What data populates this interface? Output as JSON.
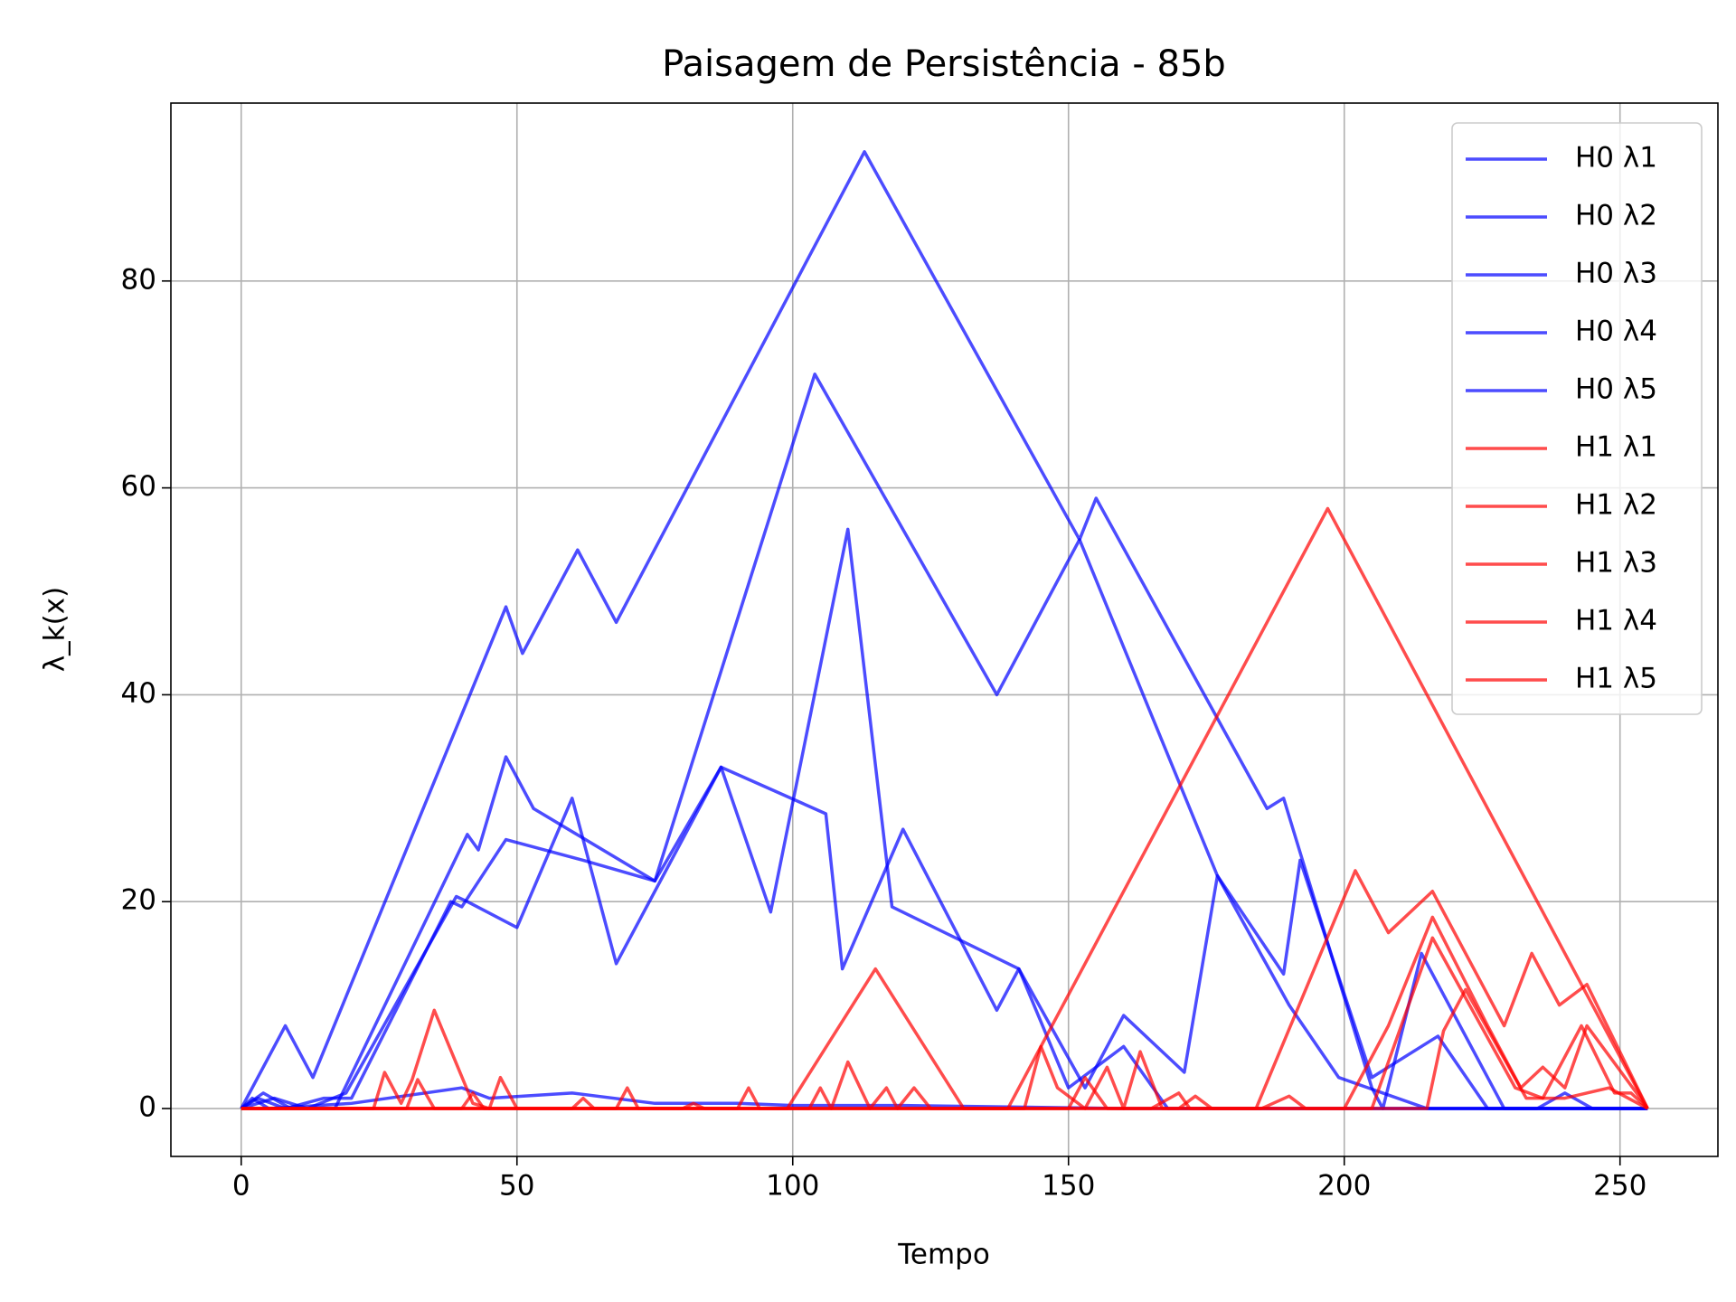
{
  "chart_data": {
    "type": "line",
    "title": "Paisagem de Persistência - 85b",
    "xlabel": "Tempo",
    "ylabel": "λ_k(x)",
    "xlim": [
      -12.75,
      267.75
    ],
    "ylim": [
      -4.63,
      97.2
    ],
    "xticks": [
      0,
      50,
      100,
      150,
      200,
      250
    ],
    "yticks": [
      0,
      20,
      40,
      60,
      80
    ],
    "grid": true,
    "legend": "upper right",
    "series": [
      {
        "name": "H0 λ1",
        "color": "#0000ff",
        "x": [
          0,
          8,
          13,
          48,
          51,
          61,
          68,
          113,
          152,
          155,
          186,
          189,
          205,
          207,
          214,
          229,
          255
        ],
        "values": [
          0,
          8,
          3,
          48.5,
          44,
          54,
          47,
          92.5,
          55,
          59,
          29,
          30,
          2,
          0,
          15,
          0,
          0
        ]
      },
      {
        "name": "H0 λ2",
        "color": "#0000ff",
        "x": [
          0,
          4,
          9,
          17,
          41,
          43,
          48,
          53,
          75,
          104,
          137,
          152,
          177,
          189,
          192,
          205,
          217,
          226,
          255
        ],
        "values": [
          0,
          1.5,
          0,
          0,
          26.5,
          25,
          34,
          29,
          22,
          71,
          40,
          55,
          22.5,
          13,
          24,
          3,
          7,
          0,
          0
        ]
      },
      {
        "name": "H0 λ3",
        "color": "#0000ff",
        "x": [
          0,
          6,
          12,
          19,
          39,
          41,
          50,
          60,
          68,
          87,
          96,
          110,
          118,
          141,
          153,
          160,
          171,
          177,
          190,
          199,
          215,
          229,
          255
        ],
        "values": [
          0,
          1,
          0,
          1.5,
          20.5,
          20,
          17.5,
          30,
          14,
          33,
          19,
          56,
          19.5,
          13.5,
          2,
          9,
          3.5,
          22.5,
          10,
          3,
          0,
          0,
          0
        ]
      },
      {
        "name": "H0 λ4",
        "color": "#0000ff",
        "x": [
          0,
          3,
          8,
          15,
          20,
          38,
          40,
          48,
          62,
          75,
          87,
          106,
          109,
          120,
          137,
          141,
          150,
          160,
          168,
          205,
          255
        ],
        "values": [
          0,
          1,
          0,
          1,
          1,
          20,
          19.5,
          26,
          24,
          22,
          33,
          28.5,
          13.5,
          27,
          9.5,
          13.5,
          2,
          6,
          0,
          0,
          0
        ]
      },
      {
        "name": "H0 λ5",
        "color": "#0000ff",
        "x": [
          0,
          2,
          5,
          20,
          40,
          45,
          60,
          75,
          90,
          100,
          120,
          160,
          200,
          235,
          240,
          245,
          255
        ],
        "values": [
          0,
          1,
          0,
          0.5,
          2,
          1,
          1.5,
          0.5,
          0.5,
          0.3,
          0.3,
          0,
          0,
          0,
          1.5,
          0,
          0
        ]
      },
      {
        "name": "H1 λ1",
        "color": "#ff0000",
        "x": [
          0,
          24,
          26,
          29,
          31,
          35,
          42,
          45,
          47,
          50,
          68,
          70,
          72,
          90,
          92,
          94,
          99,
          115,
          131,
          139,
          197,
          255
        ],
        "values": [
          0,
          0,
          3.5,
          0.5,
          2.8,
          9.5,
          0.5,
          0,
          3,
          0,
          0,
          2,
          0,
          0,
          2,
          0,
          0,
          13.5,
          0,
          0,
          58,
          0
        ]
      },
      {
        "name": "H1 λ2",
        "color": "#ff0000",
        "x": [
          0,
          30,
          32,
          35,
          103,
          105,
          107,
          110,
          114,
          117,
          119,
          122,
          125,
          142,
          145,
          148,
          153,
          157,
          160,
          163,
          167,
          184,
          202,
          208,
          216,
          229,
          234,
          239,
          244,
          255
        ],
        "values": [
          0,
          0,
          2.8,
          0,
          0,
          2,
          0,
          4.5,
          0,
          2,
          0,
          2,
          0,
          0,
          6,
          2,
          0,
          4,
          0,
          5.5,
          0,
          0,
          23,
          17,
          21,
          8,
          15,
          10,
          12,
          0
        ]
      },
      {
        "name": "H1 λ3",
        "color": "#ff0000",
        "x": [
          0,
          40,
          42,
          44,
          150,
          153,
          157,
          165,
          170,
          172,
          175,
          200,
          208,
          216,
          226,
          232,
          236,
          240,
          244,
          253,
          255
        ],
        "values": [
          0,
          0,
          1.5,
          0,
          0,
          3,
          0,
          0,
          1.5,
          0,
          0,
          0,
          8,
          18.5,
          8,
          2,
          4,
          2,
          8,
          1.5,
          0
        ]
      },
      {
        "name": "H1 λ4",
        "color": "#ff0000",
        "x": [
          0,
          60,
          62,
          64,
          170,
          173,
          176,
          205,
          216,
          231,
          236,
          243,
          249,
          252,
          255
        ],
        "values": [
          0,
          0,
          1,
          0,
          0,
          1.2,
          0,
          0,
          16.5,
          2,
          1,
          8,
          1.5,
          1.5,
          0
        ]
      },
      {
        "name": "H1 λ5",
        "color": "#ff0000",
        "x": [
          0,
          80,
          82,
          84,
          185,
          190,
          193,
          215,
          218,
          222,
          233,
          240,
          248,
          255
        ],
        "values": [
          0,
          0,
          0.5,
          0,
          0,
          1.2,
          0,
          0,
          7.5,
          11.5,
          1,
          1,
          2,
          0
        ]
      }
    ]
  }
}
